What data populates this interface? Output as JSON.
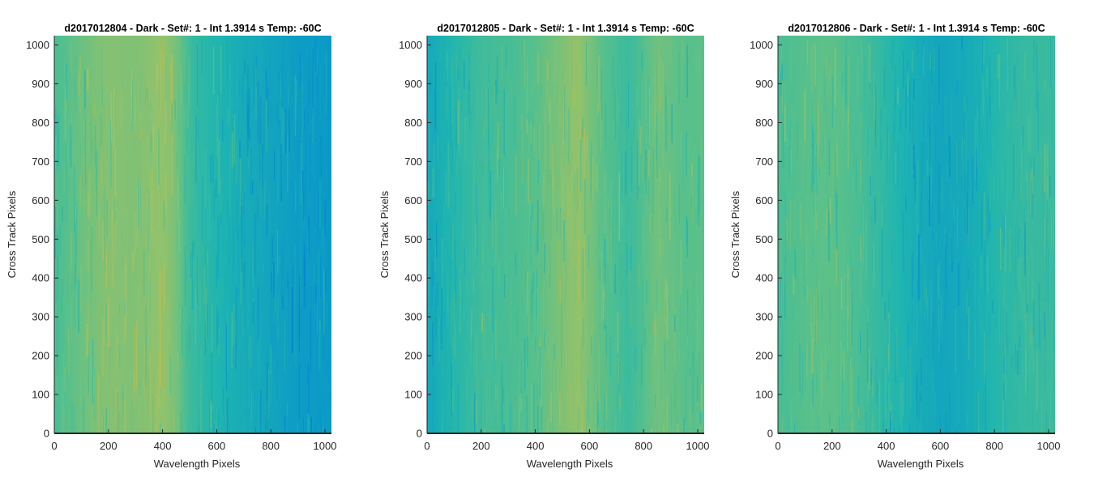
{
  "chart_data": [
    {
      "type": "heatmap",
      "title": "d2017012804 - Dark - Set#: 1 - Int 1.3914 s Temp: -60C",
      "xlabel": "Wavelength Pixels",
      "ylabel": "Cross Track Pixels",
      "xlim": [
        0,
        1024
      ],
      "ylim": [
        0,
        1024
      ],
      "xticks": [
        0,
        200,
        400,
        600,
        800,
        1000
      ],
      "yticks": [
        0,
        100,
        200,
        300,
        400,
        500,
        600,
        700,
        800,
        900,
        1000
      ],
      "column_profile": {
        "x": [
          0,
          100,
          200,
          300,
          400,
          450,
          500,
          600,
          700,
          800,
          900,
          1024
        ],
        "level": [
          0.55,
          0.66,
          0.74,
          0.72,
          0.78,
          0.7,
          0.5,
          0.4,
          0.33,
          0.28,
          0.22,
          0.2
        ]
      },
      "colormap": [
        "#0079d6",
        "#0b9ac7",
        "#1fb5b0",
        "#57c08c",
        "#9bc266",
        "#d3bb4a"
      ]
    },
    {
      "type": "heatmap",
      "title": "d2017012805 - Dark - Set#: 1 - Int 1.3914 s Temp: -60C",
      "xlabel": "Wavelength Pixels",
      "ylabel": "Cross Track Pixels",
      "xlim": [
        0,
        1024
      ],
      "ylim": [
        0,
        1024
      ],
      "xticks": [
        0,
        200,
        400,
        600,
        800,
        1000
      ],
      "yticks": [
        0,
        100,
        200,
        300,
        400,
        500,
        600,
        700,
        800,
        900,
        1000
      ],
      "column_profile": {
        "x": [
          0,
          100,
          200,
          300,
          400,
          500,
          560,
          650,
          750,
          850,
          950,
          1024
        ],
        "level": [
          0.3,
          0.42,
          0.52,
          0.55,
          0.6,
          0.72,
          0.78,
          0.6,
          0.5,
          0.68,
          0.6,
          0.62
        ]
      },
      "colormap": [
        "#0079d6",
        "#0b9ac7",
        "#1fb5b0",
        "#57c08c",
        "#9bc266",
        "#d3bb4a"
      ]
    },
    {
      "type": "heatmap",
      "title": "d2017012806 - Dark - Set#: 1 - Int 1.3914 s Temp: -60C",
      "xlabel": "Wavelength Pixels",
      "ylabel": "Cross Track Pixels",
      "xlim": [
        0,
        1024
      ],
      "ylim": [
        0,
        1024
      ],
      "xticks": [
        0,
        200,
        400,
        600,
        800,
        1000
      ],
      "yticks": [
        0,
        100,
        200,
        300,
        400,
        500,
        600,
        700,
        800,
        900,
        1000
      ],
      "column_profile": {
        "x": [
          0,
          100,
          200,
          300,
          400,
          500,
          600,
          700,
          800,
          900,
          1024
        ],
        "level": [
          0.55,
          0.6,
          0.62,
          0.55,
          0.45,
          0.35,
          0.28,
          0.32,
          0.42,
          0.48,
          0.5
        ]
      },
      "colormap": [
        "#0079d6",
        "#0b9ac7",
        "#1fb5b0",
        "#57c08c",
        "#9bc266",
        "#d3bb4a"
      ]
    }
  ]
}
